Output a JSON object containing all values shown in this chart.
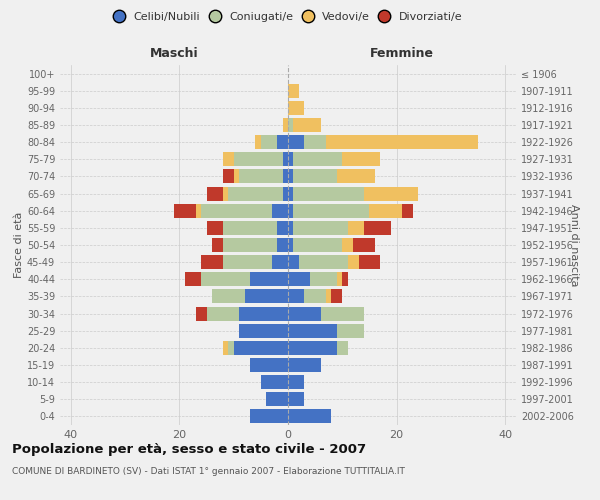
{
  "age_groups": [
    "0-4",
    "5-9",
    "10-14",
    "15-19",
    "20-24",
    "25-29",
    "30-34",
    "35-39",
    "40-44",
    "45-49",
    "50-54",
    "55-59",
    "60-64",
    "65-69",
    "70-74",
    "75-79",
    "80-84",
    "85-89",
    "90-94",
    "95-99",
    "100+"
  ],
  "birth_years": [
    "2002-2006",
    "1997-2001",
    "1992-1996",
    "1987-1991",
    "1982-1986",
    "1977-1981",
    "1972-1976",
    "1967-1971",
    "1962-1966",
    "1957-1961",
    "1952-1956",
    "1947-1951",
    "1942-1946",
    "1937-1941",
    "1932-1936",
    "1927-1931",
    "1922-1926",
    "1917-1921",
    "1912-1916",
    "1907-1911",
    "≤ 1906"
  ],
  "males": {
    "celibi": [
      7,
      4,
      5,
      7,
      10,
      9,
      9,
      8,
      7,
      3,
      2,
      2,
      3,
      1,
      1,
      1,
      2,
      0,
      0,
      0,
      0
    ],
    "coniugati": [
      0,
      0,
      0,
      0,
      1,
      0,
      6,
      6,
      9,
      9,
      10,
      10,
      13,
      10,
      8,
      9,
      3,
      0,
      0,
      0,
      0
    ],
    "vedovi": [
      0,
      0,
      0,
      0,
      1,
      0,
      0,
      0,
      0,
      0,
      0,
      0,
      1,
      1,
      1,
      2,
      1,
      1,
      0,
      0,
      0
    ],
    "divorziati": [
      0,
      0,
      0,
      0,
      0,
      0,
      2,
      0,
      3,
      4,
      2,
      3,
      4,
      3,
      2,
      0,
      0,
      0,
      0,
      0,
      0
    ]
  },
  "females": {
    "nubili": [
      8,
      3,
      3,
      6,
      9,
      9,
      6,
      3,
      4,
      2,
      1,
      1,
      1,
      1,
      1,
      1,
      3,
      0,
      0,
      0,
      0
    ],
    "coniugate": [
      0,
      0,
      0,
      0,
      2,
      5,
      8,
      4,
      5,
      9,
      9,
      10,
      14,
      13,
      8,
      9,
      4,
      1,
      0,
      0,
      0
    ],
    "vedove": [
      0,
      0,
      0,
      0,
      0,
      0,
      0,
      1,
      1,
      2,
      2,
      3,
      6,
      10,
      7,
      7,
      28,
      5,
      3,
      2,
      0
    ],
    "divorziate": [
      0,
      0,
      0,
      0,
      0,
      0,
      0,
      2,
      1,
      4,
      4,
      5,
      2,
      0,
      0,
      0,
      0,
      0,
      0,
      0,
      0
    ]
  },
  "colors": {
    "celibi_nubili": "#4472c4",
    "coniugati": "#b5c9a0",
    "vedovi": "#f0c060",
    "divorziati": "#c0392b"
  },
  "title": "Popolazione per età, sesso e stato civile - 2007",
  "subtitle": "COMUNE DI BARDINETO (SV) - Dati ISTAT 1° gennaio 2007 - Elaborazione TUTTITALIA.IT",
  "xlabel_left": "Maschi",
  "xlabel_right": "Femmine",
  "ylabel_left": "Fasce di età",
  "ylabel_right": "Anni di nascita",
  "xlim": 42,
  "background_color": "#f0f0f0",
  "legend_labels": [
    "Celibi/Nubili",
    "Coniugati/e",
    "Vedovi/e",
    "Divorziati/e"
  ]
}
